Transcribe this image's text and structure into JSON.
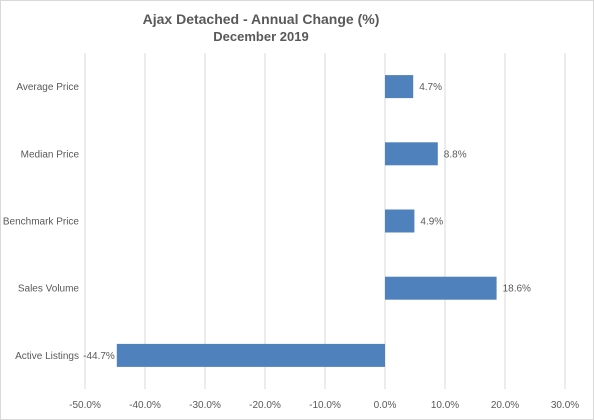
{
  "chart_data": {
    "type": "bar",
    "orientation": "horizontal",
    "title": "Ajax Detached - Annual Change (%)",
    "subtitle": "December 2019",
    "categories": [
      "Average Price",
      "Median Price",
      "Benchmark Price",
      "Sales Volume",
      "Active Listings"
    ],
    "values": [
      4.7,
      8.8,
      4.9,
      18.6,
      -44.7
    ],
    "data_labels": [
      "4.7%",
      "8.8%",
      "4.9%",
      "18.6%",
      "-44.7%"
    ],
    "xlim": [
      -50,
      30
    ],
    "x_ticks": [
      -50,
      -40,
      -30,
      -20,
      -10,
      0,
      10,
      20,
      30
    ],
    "x_tick_labels": [
      "-50.0%",
      "-40.0%",
      "-30.0%",
      "-20.0%",
      "-10.0%",
      "0.0%",
      "10.0%",
      "20.0%",
      "30.0%"
    ],
    "grid": "vertical",
    "bar_color": "#4f81bd",
    "grid_color": "#d9d9d9"
  }
}
